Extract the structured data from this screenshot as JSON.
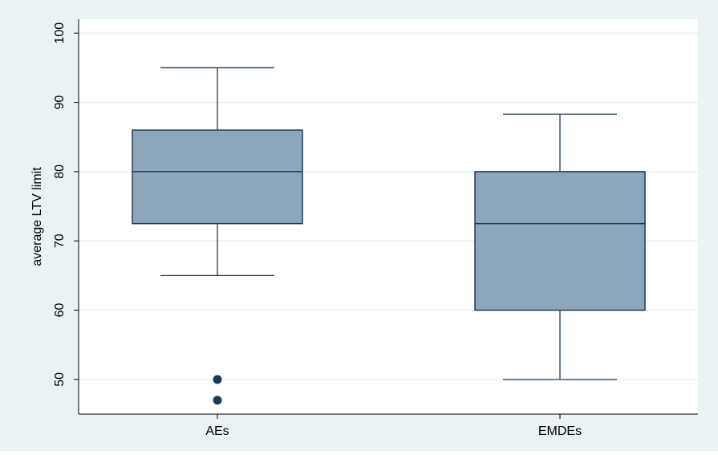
{
  "chart_data": {
    "type": "box",
    "title": "",
    "xlabel": "",
    "ylabel": "average LTV limit",
    "ylim": [
      45,
      102
    ],
    "yticks": [
      50,
      60,
      70,
      80,
      90,
      100
    ],
    "grid": true,
    "categories": [
      "AEs",
      "EMDEs"
    ],
    "boxes": [
      {
        "category": "AEs",
        "whisker_low": 65,
        "q1": 72.5,
        "median": 80,
        "q3": 86,
        "whisker_high": 95,
        "outliers": [
          50,
          47
        ]
      },
      {
        "category": "EMDEs",
        "whisker_low": 50,
        "q1": 60,
        "median": 72.5,
        "q3": 80,
        "whisker_high": 88.3,
        "outliers": []
      }
    ],
    "colors": {
      "outer_background": "#eaf2f3",
      "plot_background": "#ffffff",
      "box_fill": "#8ea6bb",
      "box_stroke": "#1f3b57",
      "grid": "#eaf2f3",
      "outlier": "#1f3b57"
    }
  }
}
